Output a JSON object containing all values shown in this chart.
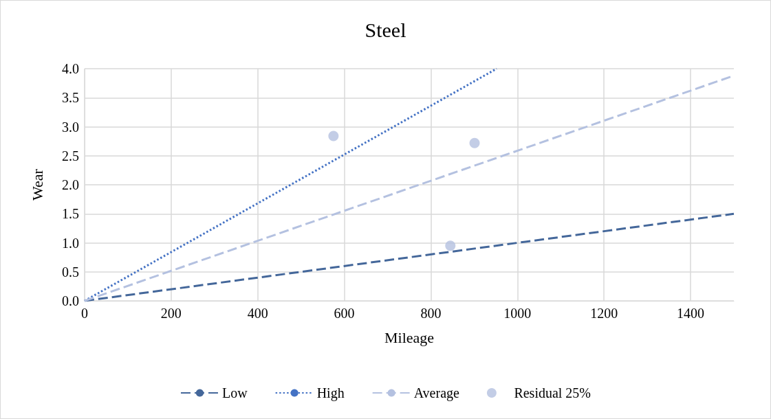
{
  "chart_data": {
    "type": "line",
    "title": "Steel",
    "xlabel": "Mileage",
    "ylabel": "Wear",
    "xlim": [
      0,
      1500
    ],
    "xticks": [
      0,
      200,
      400,
      600,
      800,
      1000,
      1200,
      1400
    ],
    "ylim": [
      0,
      4
    ],
    "yticks": [
      {
        "value": 0,
        "label": "0.0"
      },
      {
        "value": 0.5,
        "label": "0.5"
      },
      {
        "value": 1,
        "label": "1.0"
      },
      {
        "value": 1.5,
        "label": "1.5"
      },
      {
        "value": 2,
        "label": "2.0"
      },
      {
        "value": 2.5,
        "label": "2.5"
      },
      {
        "value": 3,
        "label": "3.0"
      },
      {
        "value": 3.5,
        "label": "3.5"
      },
      {
        "value": 4,
        "label": "4.0"
      }
    ],
    "grid": true,
    "legend": "bottom",
    "marker": "none",
    "series": [
      {
        "name": "Low",
        "color": "#44679a",
        "line_style": "dashed",
        "x": [
          0,
          1500
        ],
        "values": [
          0,
          1.5
        ]
      },
      {
        "name": "High",
        "color": "#4472c4",
        "line_style": "dotted",
        "x": [
          0,
          952
        ],
        "values": [
          0,
          4
        ]
      },
      {
        "name": "Average",
        "color": "#b4c1e0",
        "line_style": "dashed",
        "x": [
          0,
          1500
        ],
        "values": [
          0,
          3.88
        ]
      },
      {
        "name": "Residual 25%",
        "type": "scatter",
        "marker": "circle",
        "color": "#b4c1e0",
        "x": [
          575,
          901,
          845
        ],
        "values": [
          2.84,
          2.72,
          0.95
        ]
      }
    ]
  }
}
